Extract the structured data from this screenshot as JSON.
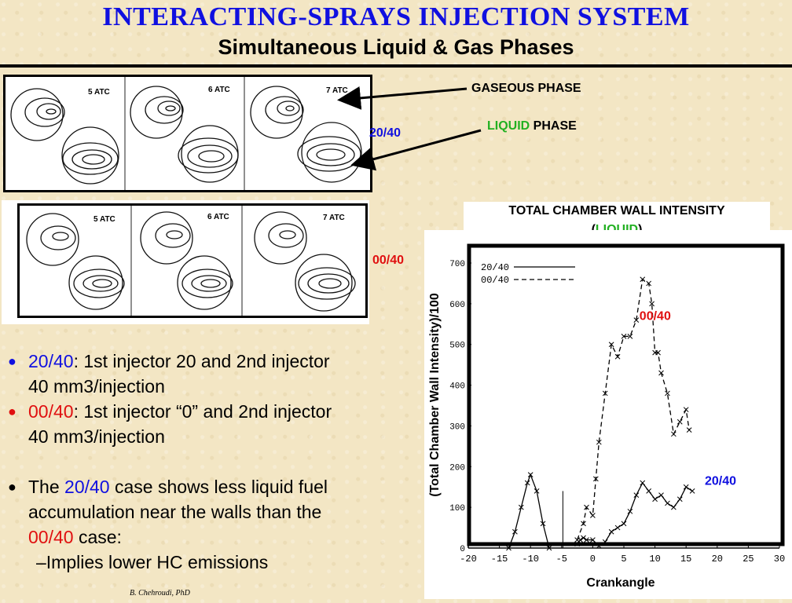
{
  "header": {
    "title": "INTERACTING-SPRAYS INJECTION SYSTEM",
    "subtitle": "Simultaneous Liquid & Gas Phases"
  },
  "figures": {
    "top_row": {
      "frames": [
        "5 ATC",
        "6 ATC",
        "7 ATC"
      ],
      "case": "20/40"
    },
    "bottom_row": {
      "frames": [
        "5 ATC",
        "6 ATC",
        "7 ATC"
      ],
      "case": "00/40"
    },
    "gaseous_label": "GASEOUS  PHASE",
    "liquid_word": "LIQUID",
    "phase_word": " PHASE"
  },
  "bullets": {
    "b1_case": "20/40",
    "b1_text": ": 1st injector 20 and 2nd injector",
    "b1_cont": "40 mm3/injection",
    "b2_case": "00/40",
    "b2_text": ": 1st injector “0” and 2nd injector",
    "b2_cont": "40 mm3/injection",
    "b3_pre": "The ",
    "b3_case1": "20/40",
    "b3_mid": " case shows less liquid fuel",
    "b3_line2": "accumulation near the walls than the",
    "b3_case2": "00/40",
    "b3_end": " case:",
    "sub_item": "–Implies lower HC emissions",
    "bullet_glyph": "●"
  },
  "credit": "B. Chehroudi, PhD",
  "chart_title": {
    "line1": "TOTAL CHAMBER  WALL INTENSITY",
    "paren_open": "(",
    "liquid": "LIQUID",
    "paren_close": ")"
  },
  "chart_data": {
    "type": "line",
    "xlabel": "Crankangle",
    "ylabel": "(Total Chamber Wall Intensity)/100",
    "xlim": [
      -20,
      30
    ],
    "ylim": [
      0,
      700
    ],
    "xticks": [
      -20,
      -15,
      -10,
      -5,
      0,
      5,
      10,
      15,
      20,
      25,
      30
    ],
    "yticks": [
      0,
      100,
      200,
      300,
      400,
      500,
      600,
      700
    ],
    "legend_position": "top-left",
    "legend": [
      "20/40",
      "00/40"
    ],
    "series": [
      {
        "name": "20/40",
        "style": "solid",
        "label_color": "#1010e0",
        "segments": [
          {
            "x": [
              -13.5,
              -12.5,
              -11.5,
              -10.5,
              -10,
              -9,
              -8,
              -7
            ],
            "y": [
              0,
              40,
              100,
              160,
              180,
              140,
              60,
              0
            ]
          },
          {
            "x": [
              -2.5,
              -2,
              -1.5,
              -1,
              0,
              1,
              2,
              3,
              4,
              5,
              6,
              7,
              8,
              9,
              10,
              11,
              12,
              13,
              14,
              15,
              16
            ],
            "y": [
              10,
              20,
              25,
              20,
              20,
              5,
              15,
              40,
              50,
              60,
              90,
              130,
              160,
              140,
              120,
              130,
              110,
              100,
              120,
              150,
              140
            ]
          }
        ]
      },
      {
        "name": "00/40",
        "style": "dashed",
        "label_color": "#e01010",
        "segments": [
          {
            "x": [
              -2.5,
              -1.5,
              -1,
              0,
              0.5,
              1,
              2,
              3,
              4,
              5,
              6,
              7,
              8,
              9,
              9.5,
              10,
              10.5,
              11,
              12,
              13,
              14,
              15,
              15.5
            ],
            "y": [
              20,
              60,
              100,
              80,
              170,
              260,
              380,
              500,
              470,
              520,
              520,
              560,
              660,
              650,
              600,
              480,
              480,
              430,
              380,
              280,
              310,
              340,
              290
            ]
          }
        ]
      }
    ],
    "annotations": [
      "00/40",
      "20/40"
    ]
  },
  "colors": {
    "title": "#1010e0",
    "case_blue": "#1010e0",
    "case_red": "#e01010",
    "liquid_green": "#22b022"
  }
}
